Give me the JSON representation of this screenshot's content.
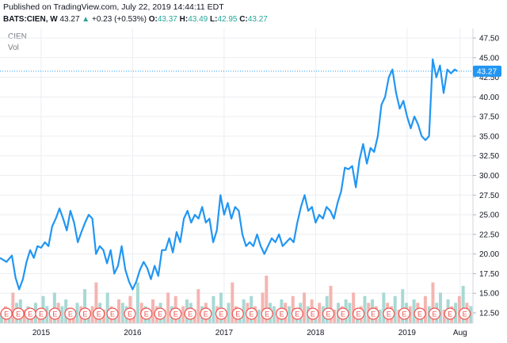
{
  "header": {
    "published": "Published on TradingView.com, July 22, 2019 14:44:11 EDT",
    "symbol_line": "BATS:CIEN, W",
    "last": "43.27",
    "arrow": "▲",
    "change": "+0.23 (+0.53%)",
    "o_label": "O:",
    "o": "43.37",
    "h_label": "H:",
    "h": "43.49",
    "l_label": "L:",
    "l": "42.95",
    "c_label": "C:",
    "c": "43.27"
  },
  "legend": {
    "series": "CIEN",
    "volume": "Vol"
  },
  "colors": {
    "line": "#2196f3",
    "vol_up": "#a8d9d4",
    "vol_down": "#f4b5b1",
    "earn_fill": "#ffffff",
    "earn_stroke": "#ef5350",
    "grid": "#ebedf1"
  },
  "price_tag": "43.27",
  "chart_data": {
    "type": "line",
    "title": "",
    "xlabel": "",
    "ylabel": "",
    "ylim": [
      12.5,
      47.5
    ],
    "ytick_labels": [
      "47.50",
      "45.00",
      "42.50",
      "40.00",
      "37.50",
      "35.00",
      "32.50",
      "30.00",
      "27.50",
      "25.00",
      "22.50",
      "20.00",
      "17.50",
      "15.00",
      "12.50"
    ],
    "ytick_values": [
      47.5,
      45,
      42.5,
      40,
      37.5,
      35,
      32.5,
      30,
      27.5,
      25,
      22.5,
      20,
      17.5,
      15,
      12.5
    ],
    "xtick_labels": [
      "2015",
      "2016",
      "2017",
      "2018",
      "2019",
      "Aug"
    ],
    "xtick_values": [
      2015.0,
      2016.0,
      2017.0,
      2018.0,
      2019.0,
      2019.58
    ],
    "xlim": [
      2014.55,
      2019.72
    ],
    "grid": true,
    "series": [
      {
        "values_x": [
          2014.55,
          2014.62,
          2014.68,
          2014.72,
          2014.76,
          2014.8,
          2014.84,
          2014.88,
          2014.92,
          2014.96,
          2015.0,
          2015.04,
          2015.08,
          2015.12,
          2015.16,
          2015.2,
          2015.24,
          2015.28,
          2015.32,
          2015.36,
          2015.4,
          2015.44,
          2015.48,
          2015.52,
          2015.56,
          2015.6,
          2015.64,
          2015.68,
          2015.72,
          2015.76,
          2015.8,
          2015.84,
          2015.88,
          2015.92,
          2015.96,
          2016.0,
          2016.04,
          2016.08,
          2016.12,
          2016.16,
          2016.2,
          2016.24,
          2016.28,
          2016.32,
          2016.36,
          2016.4,
          2016.44,
          2016.48,
          2016.52,
          2016.56,
          2016.6,
          2016.64,
          2016.68,
          2016.72,
          2016.76,
          2016.8,
          2016.84,
          2016.88,
          2016.92,
          2016.96,
          2017.0,
          2017.04,
          2017.08,
          2017.12,
          2017.16,
          2017.2,
          2017.24,
          2017.28,
          2017.32,
          2017.36,
          2017.4,
          2017.44,
          2017.48,
          2017.52,
          2017.56,
          2017.6,
          2017.64,
          2017.68,
          2017.72,
          2017.76,
          2017.8,
          2017.84,
          2017.88,
          2017.92,
          2017.96,
          2018.0,
          2018.04,
          2018.08,
          2018.12,
          2018.16,
          2018.2,
          2018.24,
          2018.28,
          2018.32,
          2018.36,
          2018.4,
          2018.44,
          2018.48,
          2018.52,
          2018.56,
          2018.6,
          2018.64,
          2018.68,
          2018.72,
          2018.76,
          2018.8,
          2018.84,
          2018.88,
          2018.92,
          2018.96,
          2019.0,
          2019.04,
          2019.08,
          2019.12,
          2019.16,
          2019.2,
          2019.24,
          2019.28,
          2019.32,
          2019.36,
          2019.4,
          2019.44,
          2019.48,
          2019.52,
          2019.55
        ],
        "values": [
          19.5,
          19.0,
          19.8,
          17.0,
          15.5,
          16.8,
          19.0,
          20.5,
          19.5,
          21.0,
          20.8,
          21.5,
          21.0,
          23.5,
          24.5,
          25.8,
          24.5,
          23.0,
          25.5,
          24.0,
          21.5,
          22.8,
          24.0,
          25.0,
          24.5,
          20.0,
          21.0,
          20.5,
          18.8,
          20.5,
          17.5,
          18.5,
          21.0,
          18.0,
          16.5,
          15.5,
          16.5,
          18.0,
          19.0,
          18.2,
          16.8,
          18.5,
          17.2,
          20.5,
          20.5,
          22.0,
          20.2,
          22.8,
          21.5,
          24.5,
          25.5,
          24.0,
          25.0,
          24.5,
          26.0,
          24.0,
          24.5,
          21.5,
          23.0,
          27.5,
          25.0,
          26.5,
          24.5,
          26.0,
          25.5,
          22.5,
          21.0,
          21.5,
          21.0,
          22.5,
          21.0,
          20.0,
          21.0,
          22.0,
          21.5,
          22.5,
          21.0,
          21.5,
          22.0,
          21.5,
          24.0,
          26.0,
          27.5,
          25.5,
          26.0,
          24.0,
          25.0,
          24.5,
          26.0,
          25.5,
          24.5,
          26.5,
          28.0,
          31.0,
          30.8,
          31.2,
          28.5,
          32.0,
          34.0,
          31.5,
          33.5,
          33.0,
          35.0,
          39.0,
          40.0,
          42.5,
          43.5,
          40.5,
          38.5,
          39.5,
          37.5,
          36.0,
          37.5,
          36.5,
          35.0,
          34.5,
          35.0,
          44.8,
          42.5,
          44.0,
          40.5,
          43.5,
          43.0,
          43.5,
          43.27
        ]
      }
    ],
    "volume_bars": [
      3,
      5,
      4,
      9,
      6,
      7,
      4,
      5,
      3,
      6,
      4,
      8,
      5,
      4,
      9,
      6,
      5,
      7,
      4,
      3,
      6,
      5,
      10,
      4,
      5,
      12,
      6,
      4,
      9,
      5,
      4,
      7,
      6,
      5,
      8,
      4,
      12,
      6,
      5,
      4,
      7,
      5,
      6,
      4,
      9,
      5,
      8,
      4,
      5,
      7,
      6,
      4,
      10,
      5,
      6,
      4,
      8,
      5,
      9,
      4,
      6,
      12,
      5,
      4,
      7,
      6,
      8,
      5,
      4,
      9,
      14,
      6,
      5,
      4,
      7,
      6,
      5,
      8,
      4,
      6,
      9,
      5,
      7,
      4,
      6,
      5,
      8,
      11,
      4,
      6,
      5,
      7,
      6,
      9,
      4,
      5,
      8,
      6,
      7,
      5,
      4,
      9,
      6,
      5,
      8,
      4,
      10,
      6,
      5,
      7,
      6,
      4,
      8,
      5,
      12,
      6,
      9,
      4,
      7,
      5,
      6,
      8,
      11,
      6,
      5
    ],
    "volume_colors_up": [
      true,
      false,
      true,
      false,
      true,
      true,
      false,
      true,
      false,
      true,
      false,
      true,
      true,
      false,
      true,
      false,
      true,
      true,
      false,
      false,
      true,
      false,
      true,
      true,
      false,
      false,
      true,
      false,
      true,
      false,
      true,
      false,
      true,
      true,
      false,
      false,
      true,
      false,
      true,
      true,
      false,
      false,
      true,
      true,
      false,
      true,
      false,
      true,
      false,
      true,
      true,
      false,
      false,
      true,
      false,
      true,
      true,
      false,
      true,
      false,
      true,
      false,
      false,
      true,
      true,
      false,
      true,
      false,
      true,
      false,
      false,
      true,
      true,
      false,
      true,
      false,
      true,
      false,
      true,
      true,
      false,
      true,
      false,
      true,
      false,
      true,
      true,
      false,
      false,
      true,
      false,
      true,
      true,
      false,
      true,
      false,
      true,
      false,
      true,
      false,
      true,
      true,
      false,
      false,
      true,
      false,
      true,
      true,
      false,
      true,
      false,
      true,
      false,
      true,
      false,
      true,
      true,
      false,
      true,
      false,
      true,
      false,
      true,
      false,
      true
    ],
    "earnings_x": [
      2014.62,
      2014.75,
      2014.88,
      2015.0,
      2015.15,
      2015.32,
      2015.48,
      2015.63,
      2015.78,
      2015.97,
      2016.15,
      2016.3,
      2016.47,
      2016.63,
      2016.8,
      2016.97,
      2017.15,
      2017.3,
      2017.47,
      2017.63,
      2017.8,
      2017.97,
      2018.14,
      2018.3,
      2018.47,
      2018.63,
      2018.8,
      2018.97,
      2019.14,
      2019.3,
      2019.47,
      2019.63
    ],
    "earnings_label": "E"
  }
}
